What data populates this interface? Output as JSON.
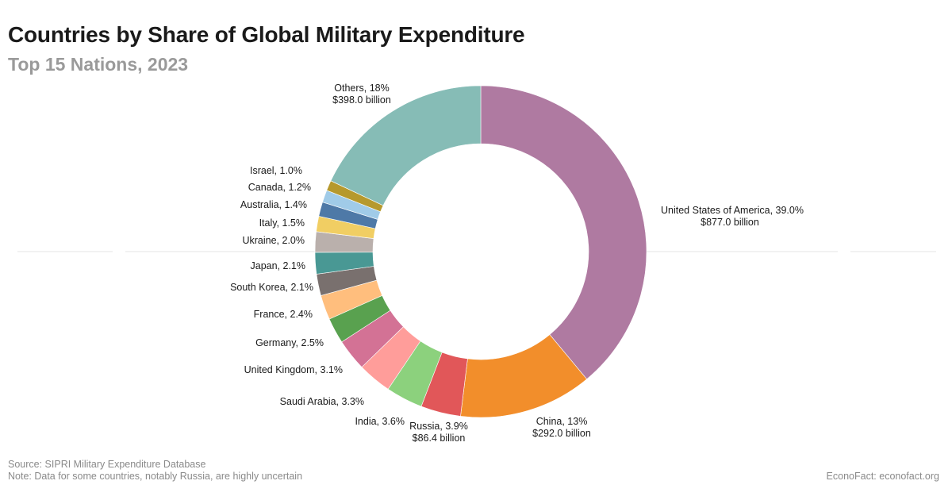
{
  "header": {
    "title": "Countries by Share of Global Military Expenditure",
    "subtitle": "Top 15 Nations, 2023"
  },
  "footer": {
    "source": "Source: SIPRI Military Expenditure Database",
    "note": "Note: Data for some countries, notably Russia, are highly uncertain",
    "credit": "EconoFact: econofact.org"
  },
  "chart_data": {
    "type": "pie",
    "donut": true,
    "title": "Countries by Share of Global Military Expenditure",
    "subtitle": "Top 15 Nations, 2023",
    "slices": [
      {
        "name": "United States of America",
        "share": 39.0,
        "label": "United States of America, 39.0%",
        "value_label": "$877.0 billion",
        "color": "#af7aa1"
      },
      {
        "name": "China",
        "share": 13.0,
        "label": "China, 13%",
        "value_label": "$292.0 billion",
        "color": "#f28e2b"
      },
      {
        "name": "Russia",
        "share": 3.9,
        "label": "Russia, 3.9%",
        "value_label": "$86.4 billion",
        "color": "#e15759"
      },
      {
        "name": "India",
        "share": 3.6,
        "label": "India, 3.6%",
        "color": "#8cd17d"
      },
      {
        "name": "Saudi Arabia",
        "share": 3.3,
        "label": "Saudi Arabia, 3.3%",
        "color": "#ff9d9a"
      },
      {
        "name": "United Kingdom",
        "share": 3.1,
        "label": "United Kingdom, 3.1%",
        "color": "#d37295"
      },
      {
        "name": "Germany",
        "share": 2.5,
        "label": "Germany, 2.5%",
        "color": "#59a14f"
      },
      {
        "name": "France",
        "share": 2.4,
        "label": "France, 2.4%",
        "color": "#ffbe7d"
      },
      {
        "name": "South Korea",
        "share": 2.1,
        "label": "South Korea, 2.1%",
        "color": "#79706e"
      },
      {
        "name": "Japan",
        "share": 2.1,
        "label": "Japan, 2.1%",
        "color": "#499894"
      },
      {
        "name": "Ukraine",
        "share": 2.0,
        "label": "Ukraine, 2.0%",
        "color": "#bab0ac"
      },
      {
        "name": "Italy",
        "share": 1.5,
        "label": "Italy, 1.5%",
        "color": "#f1ce63"
      },
      {
        "name": "Australia",
        "share": 1.4,
        "label": "Australia, 1.4%",
        "color": "#4e79a7"
      },
      {
        "name": "Canada",
        "share": 1.2,
        "label": "Canada, 1.2%",
        "color": "#a0cbe8"
      },
      {
        "name": "Israel",
        "share": 1.0,
        "label": "Israel, 1.0%",
        "color": "#b6992d"
      },
      {
        "name": "Others",
        "share": 18.0,
        "label": "Others, 18%",
        "value_label": "$398.0 billion",
        "color": "#86bcb6"
      }
    ],
    "legend": "none"
  }
}
